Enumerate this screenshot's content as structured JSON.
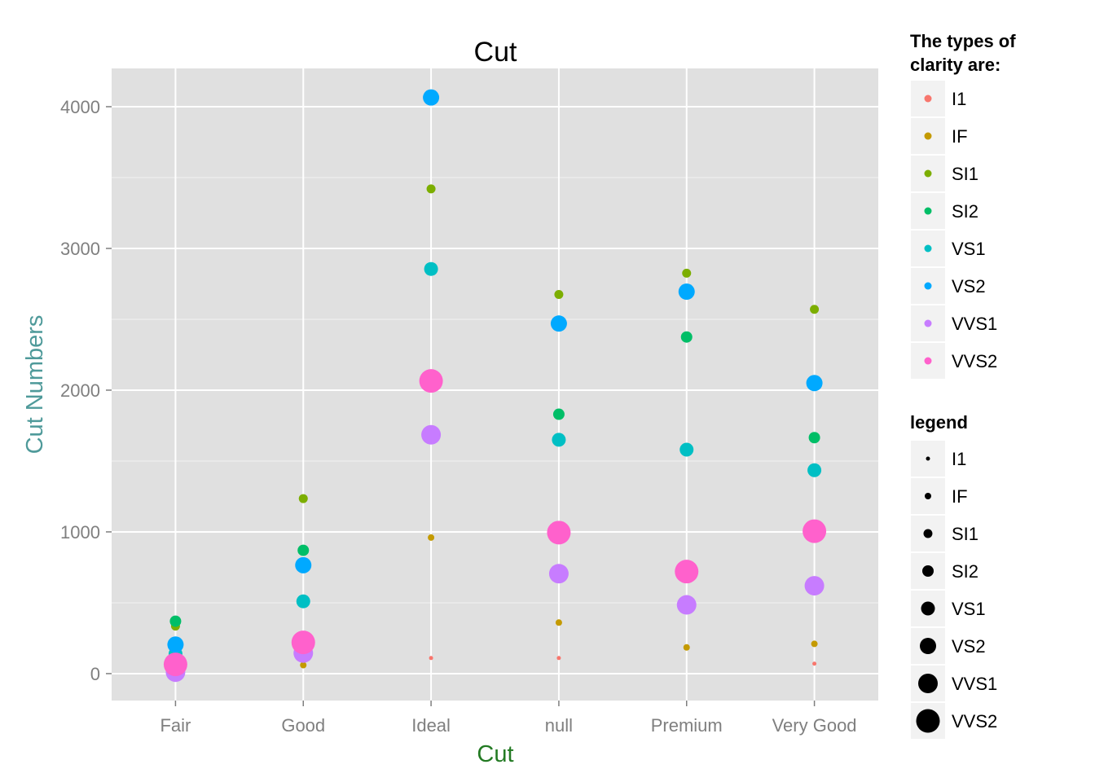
{
  "chart_data": {
    "type": "scatter",
    "title": "Cut",
    "xlabel": "Cut",
    "ylabel": "Cut Numbers",
    "xlabel_color": "#237a23",
    "ylabel_color": "#4f9a9a",
    "categories": [
      "Fair",
      "Good",
      "Ideal",
      "null",
      "Premium",
      "Very Good"
    ],
    "y_ticks": [
      0,
      1000,
      2000,
      3000,
      4000
    ],
    "ylim": [
      -190,
      4270
    ],
    "grid": true,
    "panel_background": "#e0e0e0",
    "legend_position": "right",
    "clarity_levels": [
      "I1",
      "IF",
      "SI1",
      "SI2",
      "VS1",
      "VS2",
      "VVS1",
      "VVS2"
    ],
    "clarity_colors": [
      "#f8766d",
      "#c49a00",
      "#7cae00",
      "#00be67",
      "#00bfc4",
      "#00a9ff",
      "#c77cff",
      "#ff61cc"
    ],
    "series": [
      {
        "name": "I1",
        "values": [
          10,
          70,
          110,
          110,
          null,
          70
        ]
      },
      {
        "name": "IF",
        "values": [
          10,
          60,
          960,
          360,
          185,
          210
        ]
      },
      {
        "name": "SI1",
        "values": [
          335,
          1235,
          3420,
          2675,
          2825,
          2570
        ]
      },
      {
        "name": "SI2",
        "values": [
          370,
          870,
          null,
          1830,
          2375,
          1665
        ]
      },
      {
        "name": "VS1",
        "values": [
          140,
          510,
          2855,
          1650,
          1580,
          1435
        ]
      },
      {
        "name": "VS2",
        "values": [
          205,
          765,
          4065,
          2470,
          2695,
          2050
        ]
      },
      {
        "name": "VVS1",
        "values": [
          10,
          145,
          1685,
          705,
          485,
          620
        ]
      },
      {
        "name": "VVS2",
        "values": [
          65,
          220,
          2065,
          995,
          720,
          1005
        ]
      }
    ],
    "legends": [
      {
        "title_line1": "The types of",
        "title_line2": "clarity are:",
        "kind": "color",
        "entries": [
          "I1",
          "IF",
          "SI1",
          "SI2",
          "VS1",
          "VS2",
          "VVS1",
          "VVS2"
        ]
      },
      {
        "title_line1": "legend",
        "title_line2": "",
        "kind": "size",
        "entries": [
          "I1",
          "IF",
          "SI1",
          "SI2",
          "VS1",
          "VS2",
          "VVS1",
          "VVS2"
        ]
      }
    ]
  }
}
